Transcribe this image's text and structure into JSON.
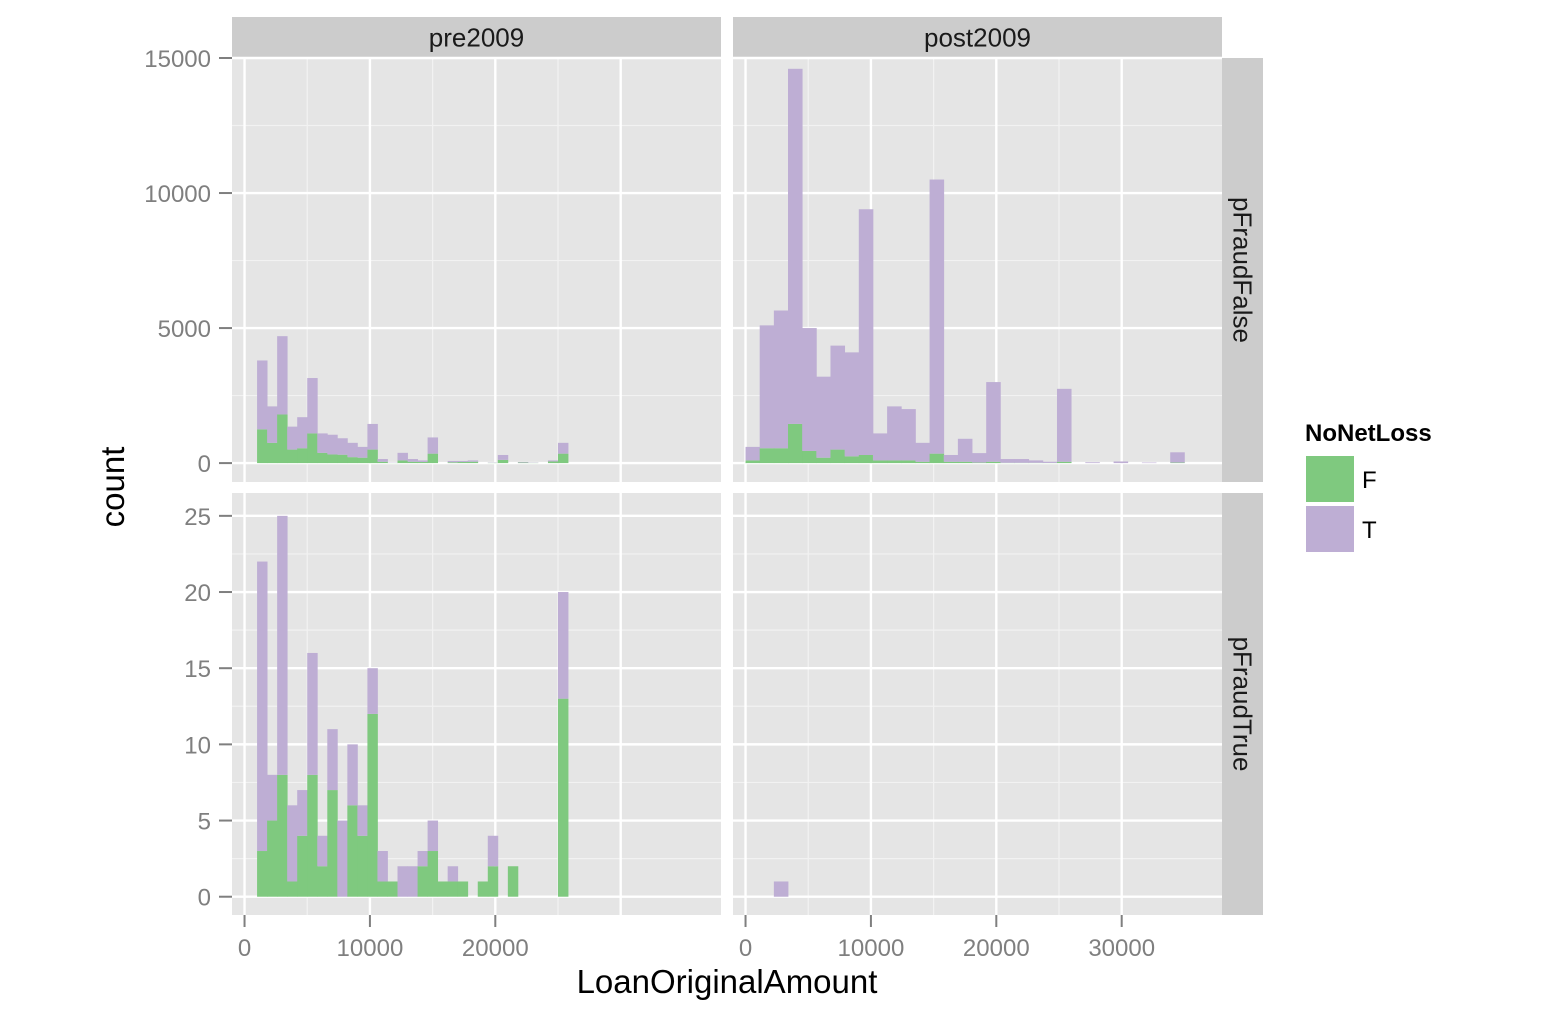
{
  "chart_data": {
    "type": "bar",
    "subtype": "faceted stacked histogram",
    "xlabel": "LoanOriginalAmount",
    "ylabel": "count",
    "facet_columns": [
      "pre2009",
      "post2009"
    ],
    "facet_rows": [
      "pFraudFalse",
      "pFraudTrue"
    ],
    "legend": {
      "title": "NoNetLoss",
      "position": "right",
      "entries": [
        {
          "key": "F",
          "label": "F",
          "color": "#7fc97f"
        },
        {
          "key": "T",
          "label": "T",
          "color": "#beaed4"
        }
      ]
    },
    "colors": {
      "F": "#7fc97f",
      "T": "#beaed4",
      "panel_bg": "#e5e5e5",
      "strip_bg": "#cccccc",
      "grid": "#ffffff"
    },
    "grid": true,
    "stacked": true,
    "xlim": [
      -1000,
      38000
    ],
    "x_ticks": [
      0,
      10000,
      20000,
      30000
    ],
    "tick_labels": {
      "x_pre2009": [
        "0",
        "10000",
        "20000"
      ],
      "x_post2009": [
        "0",
        "10000",
        "20000",
        "30000"
      ],
      "y_pFraudFalse": [
        "0",
        "5000",
        "10000",
        "15000"
      ],
      "y_pFraudTrue": [
        "0",
        "5",
        "10",
        "15",
        "20",
        "25"
      ]
    },
    "rows": [
      {
        "name": "pFraudFalse",
        "ylim": [
          -700,
          15000
        ],
        "y_ticks": [
          0,
          5000,
          10000,
          15000
        ]
      },
      {
        "name": "pFraudTrue",
        "ylim": [
          -1.2,
          26.5
        ],
        "y_ticks": [
          0,
          5,
          10,
          15,
          20,
          25
        ]
      }
    ],
    "panels": [
      {
        "col": "pre2009",
        "row": "pFraudFalse",
        "x_range": [
          1000,
          25800
        ],
        "bins": [
          {
            "F": 1250,
            "T": 2550
          },
          {
            "F": 750,
            "T": 1350
          },
          {
            "F": 1800,
            "T": 2900
          },
          {
            "F": 500,
            "T": 850
          },
          {
            "F": 550,
            "T": 1150
          },
          {
            "F": 1100,
            "T": 2050
          },
          {
            "F": 380,
            "T": 720
          },
          {
            "F": 320,
            "T": 730
          },
          {
            "F": 310,
            "T": 610
          },
          {
            "F": 220,
            "T": 530
          },
          {
            "F": 200,
            "T": 400
          },
          {
            "F": 500,
            "T": 950
          },
          {
            "F": 50,
            "T": 100
          },
          {
            "F": 5,
            "T": 10
          },
          {
            "F": 100,
            "T": 280
          },
          {
            "F": 50,
            "T": 100
          },
          {
            "F": 40,
            "T": 60
          },
          {
            "F": 350,
            "T": 600
          },
          {
            "F": 0,
            "T": 0
          },
          {
            "F": 30,
            "T": 50
          },
          {
            "F": 40,
            "T": 40
          },
          {
            "F": 50,
            "T": 50
          },
          {
            "F": 0,
            "T": 0
          },
          {
            "F": 10,
            "T": 10
          },
          {
            "F": 120,
            "T": 180
          },
          {
            "F": 0,
            "T": 0
          },
          {
            "F": 20,
            "T": 20
          },
          {
            "F": 10,
            "T": 10
          },
          {
            "F": 0,
            "T": 0
          },
          {
            "F": 60,
            "T": 40
          },
          {
            "F": 350,
            "T": 400
          }
        ]
      },
      {
        "col": "post2009",
        "row": "pFraudFalse",
        "x_range": [
          0,
          35000
        ],
        "bins": [
          {
            "F": 100,
            "T": 500
          },
          {
            "F": 550,
            "T": 4550
          },
          {
            "F": 550,
            "T": 5100
          },
          {
            "F": 1450,
            "T": 13150
          },
          {
            "F": 450,
            "T": 4550
          },
          {
            "F": 200,
            "T": 3000
          },
          {
            "F": 500,
            "T": 3850
          },
          {
            "F": 250,
            "T": 3850
          },
          {
            "F": 300,
            "T": 9100
          },
          {
            "F": 100,
            "T": 1000
          },
          {
            "F": 100,
            "T": 2000
          },
          {
            "F": 100,
            "T": 1900
          },
          {
            "F": 50,
            "T": 700
          },
          {
            "F": 350,
            "T": 10150
          },
          {
            "F": 50,
            "T": 250
          },
          {
            "F": 50,
            "T": 850
          },
          {
            "F": 20,
            "T": 350
          },
          {
            "F": 50,
            "T": 2950
          },
          {
            "F": 10,
            "T": 140
          },
          {
            "F": 10,
            "T": 140
          },
          {
            "F": 10,
            "T": 90
          },
          {
            "F": 5,
            "T": 45
          },
          {
            "F": 50,
            "T": 2700
          },
          {
            "F": 0,
            "T": 0
          },
          {
            "F": 0,
            "T": 30
          },
          {
            "F": 0,
            "T": 0
          },
          {
            "F": 0,
            "T": 60
          },
          {
            "F": 0,
            "T": 0
          },
          {
            "F": 0,
            "T": 20
          },
          {
            "F": 0,
            "T": 0
          },
          {
            "F": 20,
            "T": 380
          }
        ]
      },
      {
        "col": "pre2009",
        "row": "pFraudTrue",
        "x_range": [
          1000,
          25800
        ],
        "bins": [
          {
            "F": 3,
            "T": 19
          },
          {
            "F": 5,
            "T": 3
          },
          {
            "F": 8,
            "T": 17
          },
          {
            "F": 1,
            "T": 5
          },
          {
            "F": 4,
            "T": 3
          },
          {
            "F": 8,
            "T": 8
          },
          {
            "F": 2,
            "T": 2
          },
          {
            "F": 7,
            "T": 4
          },
          {
            "F": 0,
            "T": 5
          },
          {
            "F": 6,
            "T": 4
          },
          {
            "F": 4,
            "T": 2
          },
          {
            "F": 12,
            "T": 3
          },
          {
            "F": 1,
            "T": 2
          },
          {
            "F": 1,
            "T": 0
          },
          {
            "F": 0,
            "T": 2
          },
          {
            "F": 0,
            "T": 2
          },
          {
            "F": 2,
            "T": 1
          },
          {
            "F": 3,
            "T": 2
          },
          {
            "F": 1,
            "T": 0
          },
          {
            "F": 1,
            "T": 1
          },
          {
            "F": 1,
            "T": 0
          },
          {
            "F": 0,
            "T": 0
          },
          {
            "F": 1,
            "T": 0
          },
          {
            "F": 2,
            "T": 2
          },
          {
            "F": 0,
            "T": 0
          },
          {
            "F": 2,
            "T": 0
          },
          {
            "F": 0,
            "T": 0
          },
          {
            "F": 0,
            "T": 0
          },
          {
            "F": 0,
            "T": 0
          },
          {
            "F": 0,
            "T": 0
          },
          {
            "F": 13,
            "T": 7
          }
        ]
      },
      {
        "col": "post2009",
        "row": "pFraudTrue",
        "x_range": [
          0,
          35000
        ],
        "bins": [
          {
            "F": 0,
            "T": 0
          },
          {
            "F": 0,
            "T": 0
          },
          {
            "F": 0,
            "T": 1
          },
          {
            "F": 0,
            "T": 0
          },
          {
            "F": 0,
            "T": 0
          },
          {
            "F": 0,
            "T": 0
          },
          {
            "F": 0,
            "T": 0
          },
          {
            "F": 0,
            "T": 0
          },
          {
            "F": 0,
            "T": 0
          },
          {
            "F": 0,
            "T": 0
          },
          {
            "F": 0,
            "T": 0
          },
          {
            "F": 0,
            "T": 0
          },
          {
            "F": 0,
            "T": 0
          },
          {
            "F": 0,
            "T": 0
          },
          {
            "F": 0,
            "T": 0
          },
          {
            "F": 0,
            "T": 0
          },
          {
            "F": 0,
            "T": 0
          },
          {
            "F": 0,
            "T": 0
          },
          {
            "F": 0,
            "T": 0
          },
          {
            "F": 0,
            "T": 0
          },
          {
            "F": 0,
            "T": 0
          },
          {
            "F": 0,
            "T": 0
          },
          {
            "F": 0,
            "T": 0
          },
          {
            "F": 0,
            "T": 0
          },
          {
            "F": 0,
            "T": 0
          },
          {
            "F": 0,
            "T": 0
          },
          {
            "F": 0,
            "T": 0
          },
          {
            "F": 0,
            "T": 0
          },
          {
            "F": 0,
            "T": 0
          },
          {
            "F": 0,
            "T": 0
          },
          {
            "F": 0,
            "T": 0
          }
        ]
      }
    ]
  }
}
